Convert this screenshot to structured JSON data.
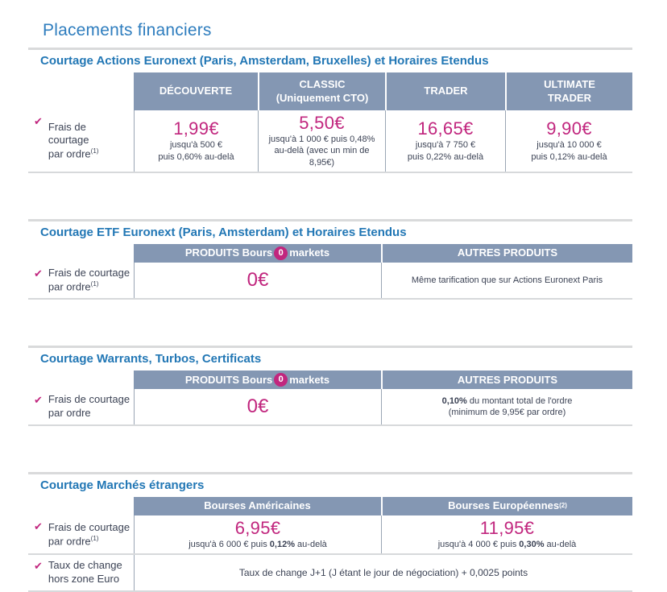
{
  "page": {
    "title": "Placements financiers"
  },
  "colors": {
    "accent_blue": "#2e7dbe",
    "heading_blue": "#2277b5",
    "header_bg": "#8497b3",
    "magenta": "#c1267e"
  },
  "sections": [
    {
      "heading": "Courtage Actions Euronext (Paris, Amsterdam, Bruxelles) et Horaires Etendus",
      "columns": [
        {
          "label": "DÉCOUVERTE"
        },
        {
          "label": "CLASSIC\n(Uniquement CTO)"
        },
        {
          "label": "TRADER"
        },
        {
          "label": "ULTIMATE\nTRADER"
        }
      ],
      "row": {
        "label": "Frais de\ncourtage\npar ordre",
        "label_sup": "(1)",
        "cells": [
          {
            "price": "1,99€",
            "note": "jusqu'à 500 €\npuis 0,60% au-delà"
          },
          {
            "price": "5,50€",
            "note": "jusqu'à 1 000 € puis 0,48%\nau-delà (avec un min de 8,95€)"
          },
          {
            "price": "16,65€",
            "note": "jusqu'à 7 750 €\npuis 0,22% au-delà"
          },
          {
            "price": "9,90€",
            "note": "jusqu'à 10 000 €\npuis 0,12% au-delà"
          }
        ]
      }
    },
    {
      "heading": "Courtage ETF Euronext (Paris, Amsterdam) et Horaires Etendus",
      "brand": {
        "prefix": "PRODUITS Bours",
        "badge": "0",
        "suffix": "markets"
      },
      "col2": "AUTRES PRODUITS",
      "row": {
        "label": "Frais de courtage\npar ordre",
        "label_sup": "(1)",
        "price": "0€",
        "right_text": "Même tarification que sur Actions Euronext Paris"
      }
    },
    {
      "heading": "Courtage Warrants, Turbos, Certificats",
      "brand": {
        "prefix": "PRODUITS Bours",
        "badge": "0",
        "suffix": "markets"
      },
      "col2": "AUTRES PRODUITS",
      "row": {
        "label": "Frais de courtage\npar ordre",
        "price": "0€",
        "right_bold": "0,10%",
        "right_rest": " du montant total de l'ordre\n(minimum de 9,95€ par ordre)"
      }
    },
    {
      "heading": "Courtage Marchés étrangers",
      "columns": [
        {
          "label": "Bourses Américaines"
        },
        {
          "label": "Bourses Européennes",
          "sup": "(2)"
        }
      ],
      "row1": {
        "label": "Frais de courtage\npar ordre",
        "label_sup": "(1)",
        "cells": [
          {
            "price": "6,95€",
            "note_pre": "jusqu'à 6 000 € puis ",
            "note_bold": "0,12%",
            "note_post": " au-delà"
          },
          {
            "price": "11,95€",
            "note_pre": "jusqu'à 4 000 € puis ",
            "note_bold": "0,30%",
            "note_post": " au-delà"
          }
        ]
      },
      "row2": {
        "label": "Taux de change\nhors zone Euro",
        "text": "Taux de change J+1 (J étant le jour de négociation) + 0,0025 points"
      }
    }
  ]
}
